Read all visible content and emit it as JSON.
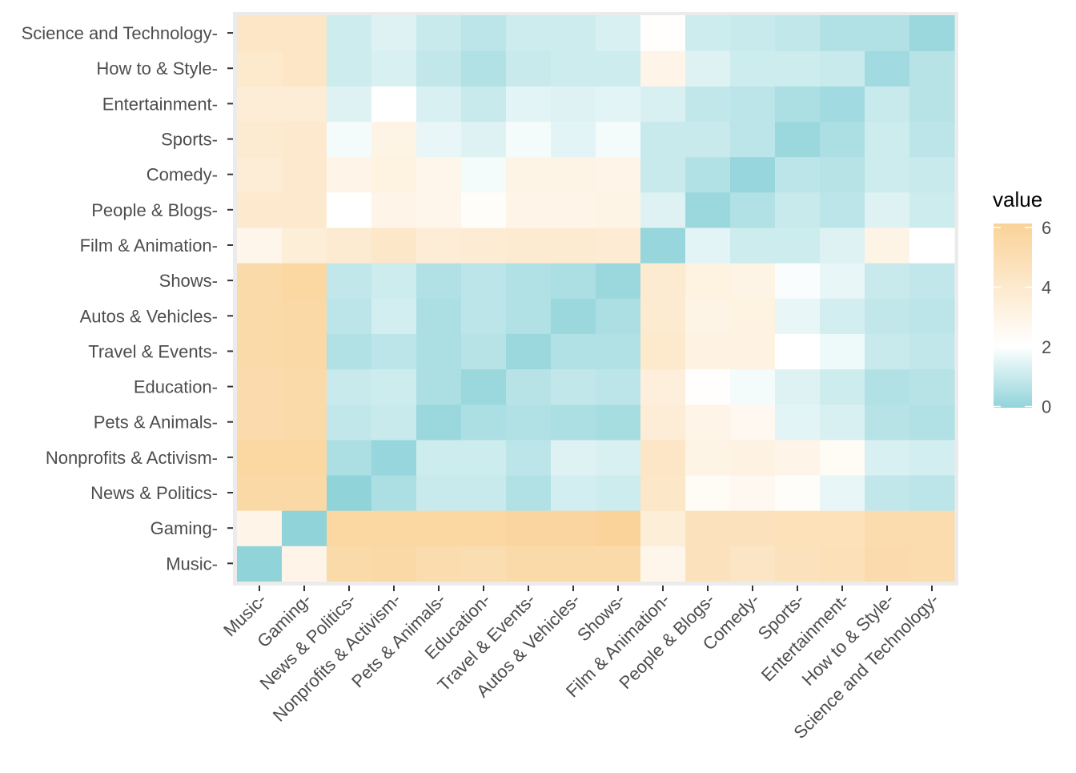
{
  "chart_data": {
    "type": "heatmap",
    "x_categories": [
      "Music",
      "Gaming",
      "News & Politics",
      "Nonprofits & Activism",
      "Pets & Animals",
      "Education",
      "Travel & Events",
      "Autos & Vehicles",
      "Shows",
      "Film & Animation",
      "People & Blogs",
      "Comedy",
      "Sports",
      "Entertainment",
      "How to & Style",
      "Science and Technology"
    ],
    "y_categories": [
      "Music",
      "Gaming",
      "News & Politics",
      "Nonprofits & Activism",
      "Pets & Animals",
      "Education",
      "Travel & Events",
      "Autos & Vehicles",
      "Shows",
      "Film & Animation",
      "People & Blogs",
      "Comedy",
      "Sports",
      "Entertainment",
      "How to & Style",
      "Science and Technology"
    ],
    "values": [
      [
        0.0,
        2.9,
        5.3,
        5.4,
        5.1,
        5.0,
        5.3,
        5.3,
        5.3,
        2.8,
        4.6,
        4.3,
        4.6,
        4.8,
        5.2,
        5.1
      ],
      [
        2.9,
        0.0,
        5.6,
        5.6,
        5.6,
        5.6,
        5.7,
        5.7,
        5.9,
        3.5,
        4.6,
        4.6,
        4.7,
        4.7,
        5.1,
        5.1
      ],
      [
        5.4,
        5.4,
        0.0,
        0.5,
        1.0,
        1.0,
        0.6,
        1.2,
        1.1,
        4.1,
        2.4,
        2.6,
        2.2,
        1.6,
        0.9,
        0.8
      ],
      [
        5.6,
        5.6,
        0.5,
        0.1,
        1.1,
        1.1,
        0.8,
        1.4,
        1.3,
        4.2,
        3.0,
        3.1,
        2.9,
        2.4,
        1.3,
        1.2
      ],
      [
        5.2,
        5.3,
        0.9,
        1.0,
        0.2,
        0.5,
        0.6,
        0.5,
        0.4,
        3.6,
        2.9,
        2.6,
        1.5,
        1.3,
        0.7,
        0.6
      ],
      [
        5.2,
        5.3,
        1.0,
        1.1,
        0.5,
        0.2,
        0.7,
        0.9,
        0.8,
        3.4,
        2.1,
        1.8,
        1.4,
        1.1,
        0.6,
        0.7
      ],
      [
        5.3,
        5.4,
        0.6,
        0.8,
        0.5,
        0.7,
        0.2,
        0.6,
        0.6,
        4.0,
        3.1,
        3.1,
        2.0,
        1.7,
        1.0,
        0.9
      ],
      [
        5.3,
        5.4,
        0.8,
        1.2,
        0.5,
        0.8,
        0.6,
        0.2,
        0.5,
        3.8,
        3.0,
        3.2,
        1.6,
        1.2,
        0.9,
        0.8
      ],
      [
        5.3,
        5.6,
        0.9,
        1.1,
        0.6,
        0.8,
        0.6,
        0.5,
        0.2,
        3.8,
        3.2,
        3.0,
        1.9,
        1.6,
        1.0,
        0.9
      ],
      [
        2.8,
        3.5,
        3.8,
        4.1,
        3.6,
        3.7,
        3.8,
        3.8,
        3.7,
        0.1,
        1.5,
        1.1,
        1.1,
        1.4,
        3.0,
        2.0
      ],
      [
        3.9,
        3.9,
        2.0,
        2.9,
        2.8,
        2.2,
        2.9,
        2.9,
        3.0,
        1.4,
        0.2,
        0.6,
        1.0,
        0.8,
        1.4,
        1.1
      ],
      [
        3.6,
        3.9,
        2.9,
        3.2,
        2.8,
        1.8,
        3.0,
        3.0,
        2.9,
        1.0,
        0.6,
        0.1,
        0.8,
        0.7,
        1.1,
        1.0
      ],
      [
        3.8,
        3.9,
        1.8,
        3.0,
        1.6,
        1.4,
        1.8,
        1.5,
        1.8,
        1.0,
        1.0,
        0.8,
        0.2,
        0.5,
        1.1,
        0.8
      ],
      [
        3.6,
        3.6,
        1.4,
        2.0,
        1.3,
        1.0,
        1.5,
        1.4,
        1.5,
        1.3,
        0.9,
        0.8,
        0.5,
        0.3,
        1.0,
        0.7
      ],
      [
        4.0,
        4.2,
        1.1,
        1.3,
        0.9,
        0.6,
        1.0,
        1.1,
        1.1,
        2.9,
        1.4,
        1.1,
        1.1,
        1.0,
        0.3,
        0.7
      ],
      [
        4.2,
        4.2,
        1.1,
        1.4,
        1.0,
        0.8,
        1.1,
        1.1,
        1.3,
        2.1,
        1.1,
        1.0,
        0.9,
        0.6,
        0.6,
        0.2
      ]
    ],
    "legend": {
      "title": "value",
      "ticks": [
        0,
        2,
        4,
        6
      ],
      "range": [
        0,
        6
      ],
      "colors": {
        "low": "#90d4da",
        "mid": "#ffffff",
        "high": "#fad298"
      },
      "midpoint": 2.0
    },
    "colors": {
      "panel_background": "#ebebeb",
      "tick_label": "#4d4d4d",
      "tick_mark": "#333333"
    }
  }
}
